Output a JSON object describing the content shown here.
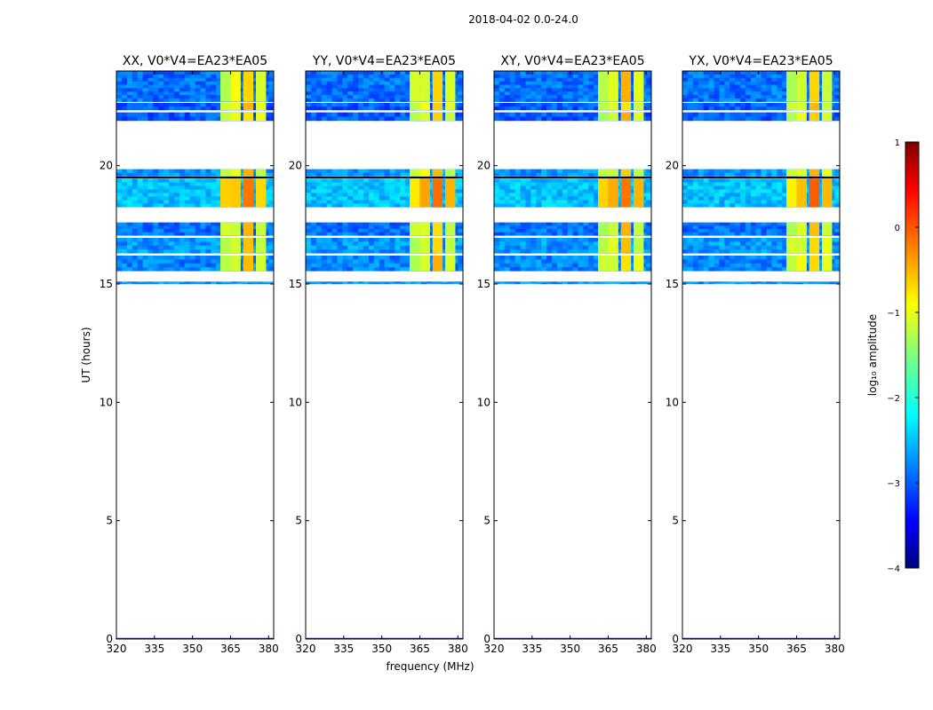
{
  "figure": {
    "suptitle": "2018-04-02 0.0-24.0",
    "xlabel": "frequency (MHz)",
    "ylabel": "UT (hours)"
  },
  "chart_data": {
    "type": "heatmap",
    "xlim": [
      320,
      382
    ],
    "ylim": [
      0,
      24
    ],
    "xticks": [
      320,
      335,
      350,
      365,
      380
    ],
    "yticks": [
      0,
      5,
      10,
      15,
      20
    ],
    "panels": [
      {
        "title": "XX, V0*V4=EA23*EA05"
      },
      {
        "title": "YY, V0*V4=EA23*EA05"
      },
      {
        "title": "XY, V0*V4=EA23*EA05"
      },
      {
        "title": "YX, V0*V4=EA23*EA05"
      }
    ],
    "data_blocks_hours": [
      {
        "t0": 15.0,
        "t1": 15.1,
        "level": -2.6
      },
      {
        "t0": 15.55,
        "t1": 16.2,
        "level": -2.7
      },
      {
        "t0": 16.3,
        "t1": 16.95,
        "level": -2.6
      },
      {
        "t0": 17.05,
        "t1": 17.6,
        "level": -2.8
      },
      {
        "t0": 18.25,
        "t1": 19.45,
        "level": -2.4
      },
      {
        "t0": 19.55,
        "t1": 19.85,
        "level": -2.6
      },
      {
        "t0": 21.9,
        "t1": 22.25,
        "level": -2.9
      },
      {
        "t0": 22.35,
        "t1": 22.65,
        "level": -2.9
      },
      {
        "t0": 22.7,
        "t1": 24.0,
        "level": -2.8
      }
    ],
    "bright_channels_mhz": [
      [
        361,
        365,
        -1.2
      ],
      [
        365,
        369,
        -1.0
      ],
      [
        370,
        374,
        -0.6
      ],
      [
        375,
        379,
        -1.1
      ]
    ],
    "colorbar": {
      "label": "log₁₀ amplitude",
      "vmin": -4,
      "vmax": 1,
      "ticks": [
        "1",
        "0",
        "−1",
        "−2",
        "−3",
        "−4"
      ],
      "colormap": "jet"
    }
  }
}
